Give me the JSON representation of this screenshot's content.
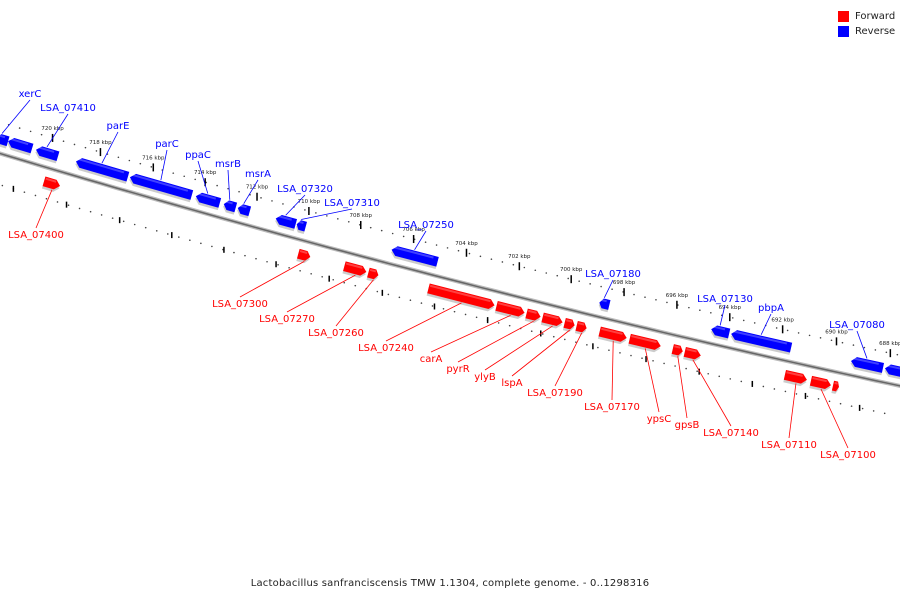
{
  "colors": {
    "forward": "#ff0000",
    "reverse": "#0000ff",
    "backbone": "#777777"
  },
  "legend": [
    {
      "label": "Forward",
      "color": "#ff0000"
    },
    {
      "label": "Reverse",
      "color": "#0000ff"
    }
  ],
  "caption": "Lactobacillus sanfranciscensis TMW 1.1304, complete genome. - 0..1298316",
  "kbp_labels": [
    "720 kbp",
    "718 kbp",
    "716 kbp",
    "714 kbp",
    "712 kbp",
    "710 kbp",
    "708 kbp",
    "706 kbp",
    "704 kbp",
    "702 kbp",
    "700 kbp",
    "698 kbp",
    "696 kbp",
    "694 kbp",
    "692 kbp",
    "690 kbp",
    "688 kbp"
  ],
  "reverse_labels": [
    "xerC",
    "LSA_07410",
    "parE",
    "parC",
    "ppaC",
    "msrB",
    "msrA",
    "LSA_07320",
    "LSA_07310",
    "LSA_07250",
    "LSA_07180",
    "LSA_07130",
    "pbpA",
    "LSA_07080"
  ],
  "forward_labels": [
    "LSA_07400",
    "LSA_07300",
    "LSA_07270",
    "LSA_07260",
    "LSA_07240",
    "carA",
    "pyrR",
    "ylyB",
    "lspA",
    "LSA_07190",
    "LSA_07170",
    "ypsC",
    "gpsB",
    "LSA_07140",
    "LSA_07110",
    "LSA_07100"
  ]
}
